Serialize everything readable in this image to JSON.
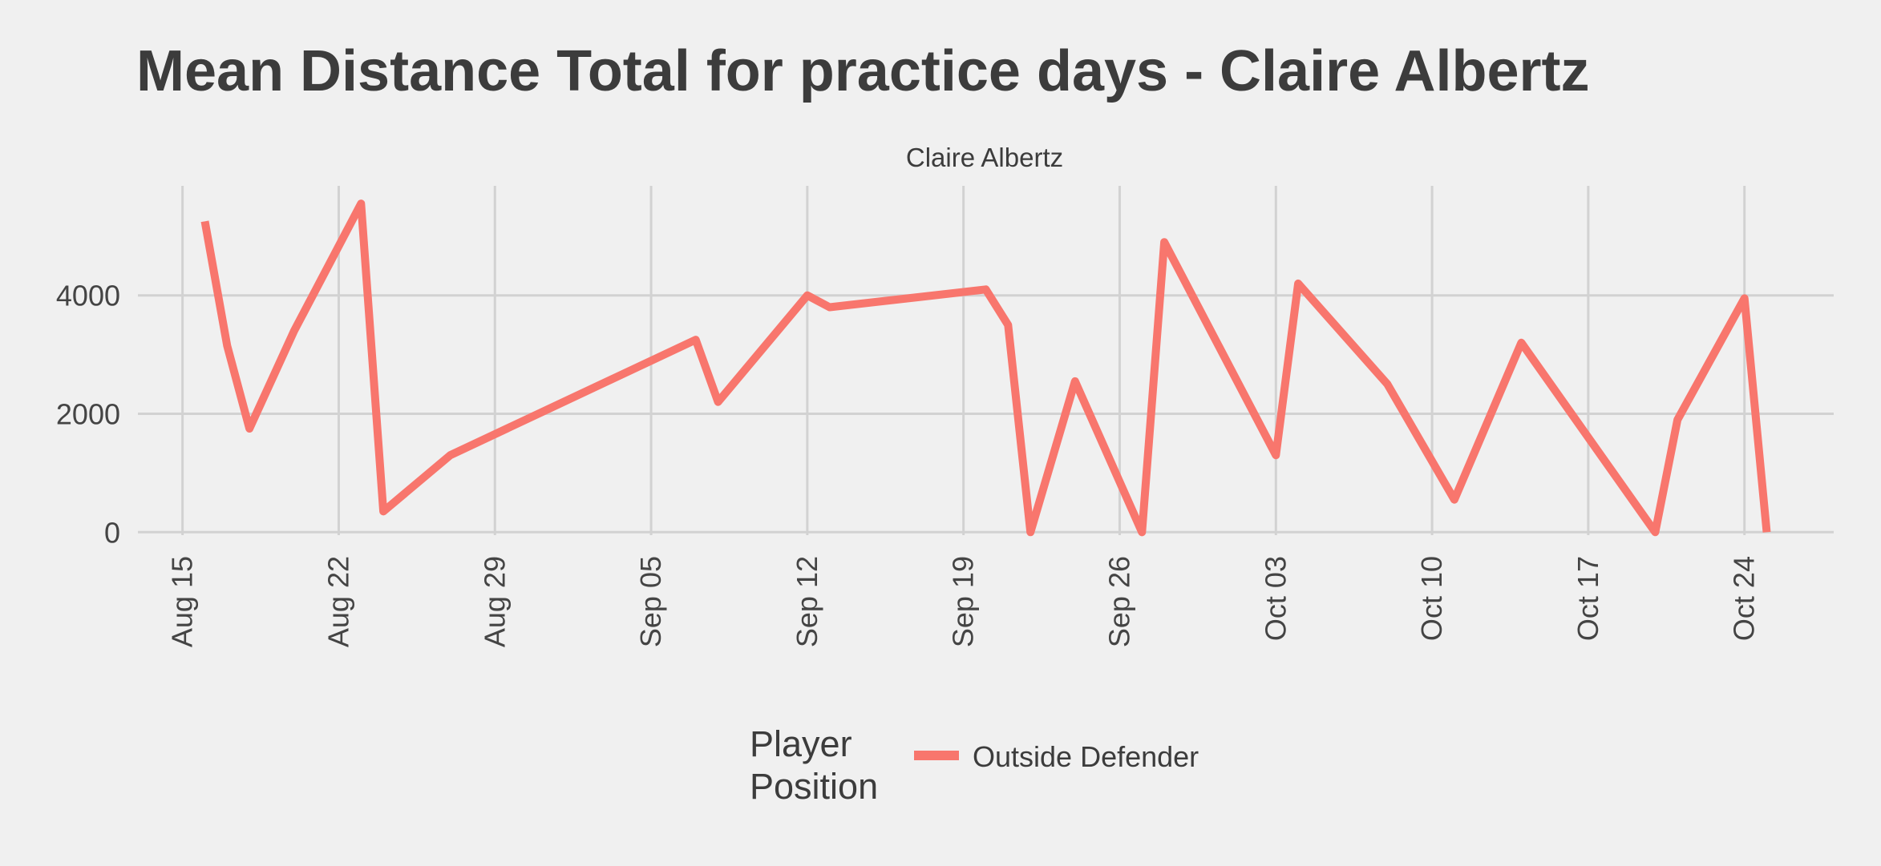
{
  "chart_data": {
    "type": "line",
    "title": "Mean Distance Total for practice days -  Claire Albertz",
    "facet_label": "Claire Albertz",
    "xlabel": "",
    "ylabel": "",
    "x_ticks": [
      "2022-08-15",
      "2022-08-22",
      "2022-08-29",
      "2022-09-05",
      "2022-09-12",
      "2022-09-19",
      "2022-09-26",
      "2022-10-03",
      "2022-10-10",
      "2022-10-17",
      "2022-10-24"
    ],
    "x_tick_labels": [
      "Aug 15",
      "Aug 22",
      "Aug 29",
      "Sep 05",
      "Sep 12",
      "Sep 19",
      "Sep 26",
      "Oct 03",
      "Oct 10",
      "Oct 17",
      "Oct 24"
    ],
    "xlim": [
      "2022-08-13",
      "2022-10-28"
    ],
    "y_ticks": [
      0,
      2000,
      4000
    ],
    "ylim": [
      -50,
      5850
    ],
    "grid": true,
    "legend": {
      "title": "Player Position",
      "title_lines": [
        "Player",
        "Position"
      ],
      "placement": "bottom"
    },
    "series": [
      {
        "name": "Outside Defender",
        "color": "#f8766d",
        "points": [
          {
            "x": "2022-08-16",
            "y": 5250
          },
          {
            "x": "2022-08-17",
            "y": 3150
          },
          {
            "x": "2022-08-18",
            "y": 1750
          },
          {
            "x": "2022-08-20",
            "y": 3400
          },
          {
            "x": "2022-08-23",
            "y": 5550
          },
          {
            "x": "2022-08-24",
            "y": 350
          },
          {
            "x": "2022-08-27",
            "y": 1300
          },
          {
            "x": "2022-09-07",
            "y": 3250
          },
          {
            "x": "2022-09-08",
            "y": 2200
          },
          {
            "x": "2022-09-12",
            "y": 4000
          },
          {
            "x": "2022-09-13",
            "y": 3800
          },
          {
            "x": "2022-09-20",
            "y": 4100
          },
          {
            "x": "2022-09-21",
            "y": 3500
          },
          {
            "x": "2022-09-22",
            "y": 0
          },
          {
            "x": "2022-09-24",
            "y": 2550
          },
          {
            "x": "2022-09-27",
            "y": 0
          },
          {
            "x": "2022-09-28",
            "y": 4900
          },
          {
            "x": "2022-10-03",
            "y": 1300
          },
          {
            "x": "2022-10-04",
            "y": 4200
          },
          {
            "x": "2022-10-08",
            "y": 2500
          },
          {
            "x": "2022-10-11",
            "y": 550
          },
          {
            "x": "2022-10-14",
            "y": 3200
          },
          {
            "x": "2022-10-20",
            "y": 0
          },
          {
            "x": "2022-10-21",
            "y": 1900
          },
          {
            "x": "2022-10-24",
            "y": 3950
          },
          {
            "x": "2022-10-25",
            "y": 0
          }
        ]
      }
    ]
  }
}
